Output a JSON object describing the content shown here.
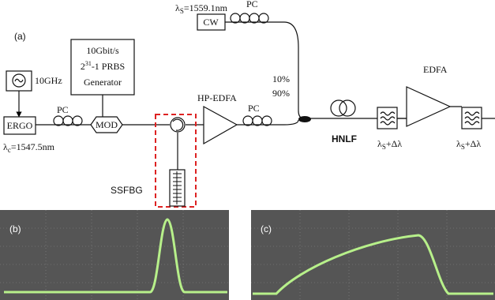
{
  "panel_a": {
    "label": "(a)",
    "signal_wavelength": {
      "symbol": "λ",
      "sub": "S",
      "rest": "=1559.1nm"
    },
    "cw_pc": "PC",
    "cw": "CW",
    "generator": {
      "line1": "10Gbit/s",
      "line2": {
        "base": "2",
        "sup": "31",
        "rest": "-1 PRBS"
      },
      "line3": "Generator"
    },
    "clock": "10GHz",
    "mod_pc": "PC",
    "mod": "MOD",
    "ergo": "ERGO",
    "clock_wavelength": {
      "symbol": "λ",
      "sub": "c",
      "rest": "=1547.5nm"
    },
    "hp_edfa": "HP-EDFA",
    "pump_pc": "PC",
    "coupler_10": "10%",
    "coupler_90": "90%",
    "hnlf": "HNLF",
    "edfa": "EDFA",
    "filter1": {
      "symbol": "λ",
      "sub": "S",
      "rest": "+Δλ"
    },
    "filter2": {
      "symbol": "λ",
      "sub": "S",
      "rest": "+Δλ"
    },
    "ssfbg": "SSFBG"
  },
  "panel_b": {
    "label": "(b)"
  },
  "panel_c": {
    "label": "(c)"
  }
}
